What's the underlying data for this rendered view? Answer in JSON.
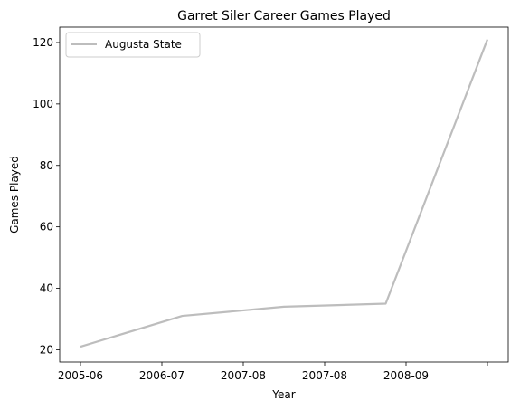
{
  "chart_data": {
    "type": "line",
    "title": "Garret Siler Career Games Played",
    "xlabel": "Year",
    "ylabel": "Games Played",
    "x_tick_labels": [
      "2005-06",
      "2006-07",
      "2007-08",
      "2007-08",
      "2008-09",
      ""
    ],
    "y_ticks": [
      20,
      40,
      60,
      80,
      100,
      120
    ],
    "ylim": [
      16,
      125
    ],
    "grid": false,
    "legend_position": "top-left",
    "series": [
      {
        "name": "Augusta State",
        "color": "#bdbdbd",
        "x": [
          0,
          1,
          2,
          3,
          4
        ],
        "values": [
          21,
          31,
          34,
          35,
          121
        ]
      }
    ]
  }
}
